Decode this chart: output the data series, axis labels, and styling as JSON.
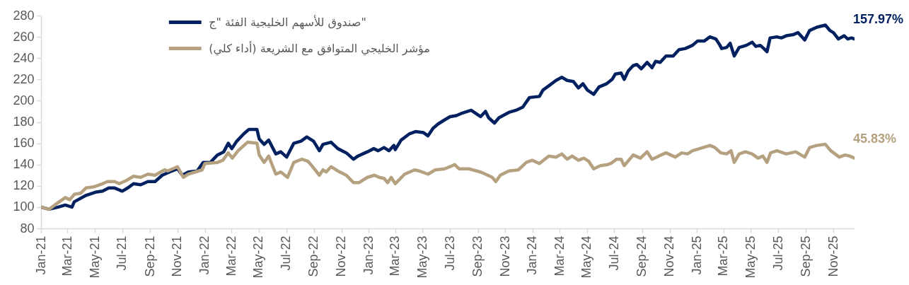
{
  "chart_data": {
    "type": "line",
    "legend": "top left",
    "xlim": [
      "2021-01-01",
      "2025-12-18"
    ],
    "xticks": [
      {
        "value": "2021-01",
        "label": "Jan-21"
      },
      {
        "value": "2021-03",
        "label": "Mar-21"
      },
      {
        "value": "2021-05",
        "label": "May-21"
      },
      {
        "value": "2021-07",
        "label": "Jul-21"
      },
      {
        "value": "2021-09",
        "label": "Sep-21"
      },
      {
        "value": "2021-11",
        "label": "Nov-21"
      },
      {
        "value": "2022-01",
        "label": "Jan-22"
      },
      {
        "value": "2022-03",
        "label": "Mar-22"
      },
      {
        "value": "2022-05",
        "label": "May-22"
      },
      {
        "value": "2022-07",
        "label": "Jul-22"
      },
      {
        "value": "2022-09",
        "label": "Sep-22"
      },
      {
        "value": "2022-11",
        "label": "Nov-22"
      },
      {
        "value": "2023-01",
        "label": "Jan-23"
      },
      {
        "value": "2023-03",
        "label": "Mar-23"
      },
      {
        "value": "2023-05",
        "label": "May-23"
      },
      {
        "value": "2023-07",
        "label": "Jul-23"
      },
      {
        "value": "2023-09",
        "label": "Sep-23"
      },
      {
        "value": "2023-11",
        "label": "Nov-23"
      },
      {
        "value": "2024-01",
        "label": "Jan-24"
      },
      {
        "value": "2024-03",
        "label": "Mar-24"
      },
      {
        "value": "2024-05",
        "label": "May-24"
      },
      {
        "value": "2024-07",
        "label": "Jul-24"
      },
      {
        "value": "2024-09",
        "label": "Sep-24"
      },
      {
        "value": "2024-11",
        "label": "Nov-24"
      },
      {
        "value": "2025-01",
        "label": "Jan-25"
      },
      {
        "value": "2025-03",
        "label": "Mar-25"
      },
      {
        "value": "2025-05",
        "label": "May-25"
      },
      {
        "value": "2025-07",
        "label": "Jul-25"
      },
      {
        "value": "2025-09",
        "label": "Sep-25"
      },
      {
        "value": "2025-11",
        "label": "Nov-25"
      }
    ],
    "ylim": [
      80,
      280
    ],
    "yticks": [
      80,
      100,
      120,
      140,
      160,
      180,
      200,
      220,
      240,
      260,
      280
    ],
    "series": [
      {
        "name": "صندوق للأسهم الخليجية الفئة \"ج\"",
        "color": "#002060",
        "x": [
          "2021-01-01",
          "2021-01-19",
          "2021-02-08",
          "2021-02-24",
          "2021-03-11",
          "2021-03-16",
          "2021-04-11",
          "2021-05-02",
          "2021-05-18",
          "2021-06-01",
          "2021-06-14",
          "2021-07-01",
          "2021-07-13",
          "2021-07-26",
          "2021-08-11",
          "2021-08-27",
          "2021-09-12",
          "2021-09-28",
          "2021-10-14",
          "2021-11-01",
          "2021-11-12",
          "2021-11-25",
          "2021-12-15",
          "2021-12-28",
          "2022-01-13",
          "2022-01-29",
          "2022-02-12",
          "2022-02-22",
          "2022-03-02",
          "2022-03-13",
          "2022-03-29",
          "2022-04-09",
          "2022-04-27",
          "2022-05-02",
          "2022-05-13",
          "2022-05-23",
          "2022-06-08",
          "2022-06-19",
          "2022-07-02",
          "2022-07-18",
          "2022-08-03",
          "2022-08-16",
          "2022-08-31",
          "2022-09-13",
          "2022-09-21",
          "2022-10-09",
          "2022-10-24",
          "2022-11-12",
          "2022-11-28",
          "2022-12-08",
          "2022-12-29",
          "2023-01-12",
          "2023-01-22",
          "2023-02-04",
          "2023-02-15",
          "2023-02-26",
          "2023-03-01",
          "2023-03-14",
          "2023-04-02",
          "2023-04-15",
          "2023-05-03",
          "2023-05-13",
          "2023-05-24",
          "2023-06-04",
          "2023-06-19",
          "2023-07-01",
          "2023-07-15",
          "2023-07-26",
          "2023-08-17",
          "2023-09-07",
          "2023-09-18",
          "2023-09-25",
          "2023-10-08",
          "2023-10-18",
          "2023-11-09",
          "2023-11-25",
          "2023-12-10",
          "2023-12-25",
          "2024-01-16",
          "2024-01-24",
          "2024-02-06",
          "2024-02-22",
          "2024-03-06",
          "2024-03-18",
          "2024-04-01",
          "2024-04-12",
          "2024-04-22",
          "2024-05-02",
          "2024-05-16",
          "2024-05-28",
          "2024-06-14",
          "2024-06-26",
          "2024-07-03",
          "2024-07-16",
          "2024-07-23",
          "2024-08-01",
          "2024-08-12",
          "2024-08-20",
          "2024-08-30",
          "2024-09-12",
          "2024-09-23",
          "2024-10-01",
          "2024-10-11",
          "2024-10-24",
          "2024-11-09",
          "2024-11-22",
          "2024-12-06",
          "2024-12-22",
          "2025-01-02",
          "2025-01-17",
          "2025-01-30",
          "2025-02-12",
          "2025-02-20",
          "2025-02-25",
          "2025-03-08",
          "2025-03-16",
          "2025-03-25",
          "2025-04-05",
          "2025-04-21",
          "2025-05-04",
          "2025-05-12",
          "2025-05-22",
          "2025-05-30",
          "2025-06-06",
          "2025-06-13",
          "2025-06-28",
          "2025-07-08",
          "2025-07-19",
          "2025-08-03",
          "2025-08-14",
          "2025-08-29",
          "2025-09-09",
          "2025-09-25",
          "2025-10-14",
          "2025-10-24",
          "2025-11-01",
          "2025-11-12",
          "2025-11-25",
          "2025-12-03",
          "2025-12-11",
          "2025-12-18"
        ],
        "values": [
          100,
          98,
          100,
          102,
          100,
          105,
          111,
          114,
          115,
          118,
          118,
          115,
          118,
          122,
          121,
          124,
          124,
          130,
          133,
          136,
          130,
          133,
          134,
          142,
          142,
          149,
          152,
          160,
          155,
          162,
          169,
          173,
          173,
          164,
          159,
          163,
          150,
          152,
          147,
          160,
          162,
          166,
          162,
          153,
          159,
          161,
          155,
          151,
          145,
          148,
          152,
          155,
          153,
          156,
          153,
          158,
          154,
          163,
          169,
          171,
          170,
          167,
          174,
          178,
          182,
          185,
          186,
          188,
          191,
          185,
          190,
          184,
          179,
          184,
          189,
          191,
          194,
          203,
          204,
          210,
          214,
          219,
          222,
          219,
          218,
          212,
          216,
          210,
          206,
          213,
          216,
          220,
          225,
          226,
          220,
          228,
          233,
          234,
          230,
          236,
          231,
          237,
          236,
          242,
          242,
          248,
          249,
          252,
          256,
          256,
          260,
          258,
          253,
          249,
          250,
          254,
          242,
          250,
          252,
          255,
          251,
          252,
          249,
          246,
          259,
          260,
          259,
          261,
          262,
          264,
          257,
          266,
          269,
          271,
          266,
          264,
          258,
          261,
          258,
          259,
          258
        ]
      },
      {
        "name": "مؤشر الخليجي المتوافق مع الشريعة (أداء كلي)",
        "color": "#b5a180",
        "x": [
          "2021-01-01",
          "2021-01-19",
          "2021-02-04",
          "2021-02-24",
          "2021-03-06",
          "2021-03-16",
          "2021-03-30",
          "2021-04-11",
          "2021-04-28",
          "2021-05-18",
          "2021-05-29",
          "2021-06-14",
          "2021-06-24",
          "2021-07-10",
          "2021-07-26",
          "2021-08-11",
          "2021-08-27",
          "2021-09-12",
          "2021-10-03",
          "2021-10-10",
          "2021-11-01",
          "2021-11-14",
          "2021-11-25",
          "2021-12-10",
          "2021-12-26",
          "2022-01-01",
          "2022-01-29",
          "2022-02-10",
          "2022-02-22",
          "2022-03-03",
          "2022-03-16",
          "2022-04-06",
          "2022-04-27",
          "2022-05-02",
          "2022-05-13",
          "2022-05-23",
          "2022-06-08",
          "2022-06-19",
          "2022-07-04",
          "2022-07-18",
          "2022-08-05",
          "2022-08-19",
          "2022-08-25",
          "2022-09-13",
          "2022-09-21",
          "2022-09-28",
          "2022-10-09",
          "2022-10-24",
          "2022-11-12",
          "2022-11-28",
          "2022-12-10",
          "2022-12-29",
          "2023-01-14",
          "2023-01-24",
          "2023-02-04",
          "2023-02-12",
          "2023-02-20",
          "2023-03-01",
          "2023-03-22",
          "2023-04-13",
          "2023-04-23",
          "2023-05-13",
          "2023-05-29",
          "2023-06-19",
          "2023-07-01",
          "2023-07-11",
          "2023-07-21",
          "2023-08-12",
          "2023-09-07",
          "2023-09-18",
          "2023-10-03",
          "2023-10-11",
          "2023-10-21",
          "2023-11-09",
          "2023-11-30",
          "2023-12-18",
          "2023-12-31",
          "2024-01-16",
          "2024-02-06",
          "2024-02-22",
          "2024-03-06",
          "2024-03-18",
          "2024-03-29",
          "2024-04-12",
          "2024-04-24",
          "2024-05-05",
          "2024-05-16",
          "2024-05-31",
          "2024-06-16",
          "2024-06-23",
          "2024-07-06",
          "2024-07-16",
          "2024-07-23",
          "2024-08-12",
          "2024-08-28",
          "2024-09-12",
          "2024-09-23",
          "2024-10-08",
          "2024-10-24",
          "2024-11-14",
          "2024-11-28",
          "2024-12-11",
          "2024-12-22",
          "2025-01-07",
          "2025-01-30",
          "2025-02-10",
          "2025-02-23",
          "2025-03-08",
          "2025-03-18",
          "2025-03-25",
          "2025-04-05",
          "2025-04-19",
          "2025-05-04",
          "2025-05-17",
          "2025-05-28",
          "2025-06-06",
          "2025-06-14",
          "2025-06-28",
          "2025-07-19",
          "2025-08-09",
          "2025-08-29",
          "2025-09-09",
          "2025-09-25",
          "2025-10-14",
          "2025-10-26",
          "2025-11-14",
          "2025-11-27",
          "2025-12-07",
          "2025-12-18"
        ],
        "values": [
          100,
          98,
          103,
          109,
          107,
          112,
          113,
          118,
          119,
          122,
          124,
          124,
          122,
          125,
          129,
          128,
          131,
          130,
          135,
          134,
          138,
          128,
          131,
          133,
          135,
          141,
          142,
          144,
          151,
          146,
          153,
          161,
          160,
          149,
          142,
          148,
          131,
          133,
          128,
          142,
          145,
          143,
          140,
          130,
          135,
          133,
          138,
          134,
          130,
          123,
          123,
          128,
          130,
          128,
          127,
          123,
          128,
          122,
          131,
          135,
          134,
          131,
          135,
          136,
          138,
          140,
          136,
          136,
          133,
          131,
          128,
          124,
          130,
          134,
          135,
          142,
          144,
          141,
          148,
          147,
          150,
          145,
          148,
          144,
          146,
          143,
          136,
          139,
          140,
          141,
          145,
          145,
          139,
          149,
          146,
          152,
          145,
          148,
          151,
          147,
          151,
          150,
          153,
          155,
          158,
          156,
          151,
          150,
          153,
          142,
          150,
          152,
          150,
          146,
          148,
          142,
          151,
          153,
          150,
          152,
          147,
          156,
          158,
          159,
          153,
          147,
          149,
          148,
          146
        ]
      }
    ],
    "annotations": [
      {
        "text": "157.97%",
        "x": "2025-12-18",
        "y": 258
      },
      {
        "text": "45.83%",
        "x": "2025-12-18",
        "y": 146
      }
    ]
  }
}
